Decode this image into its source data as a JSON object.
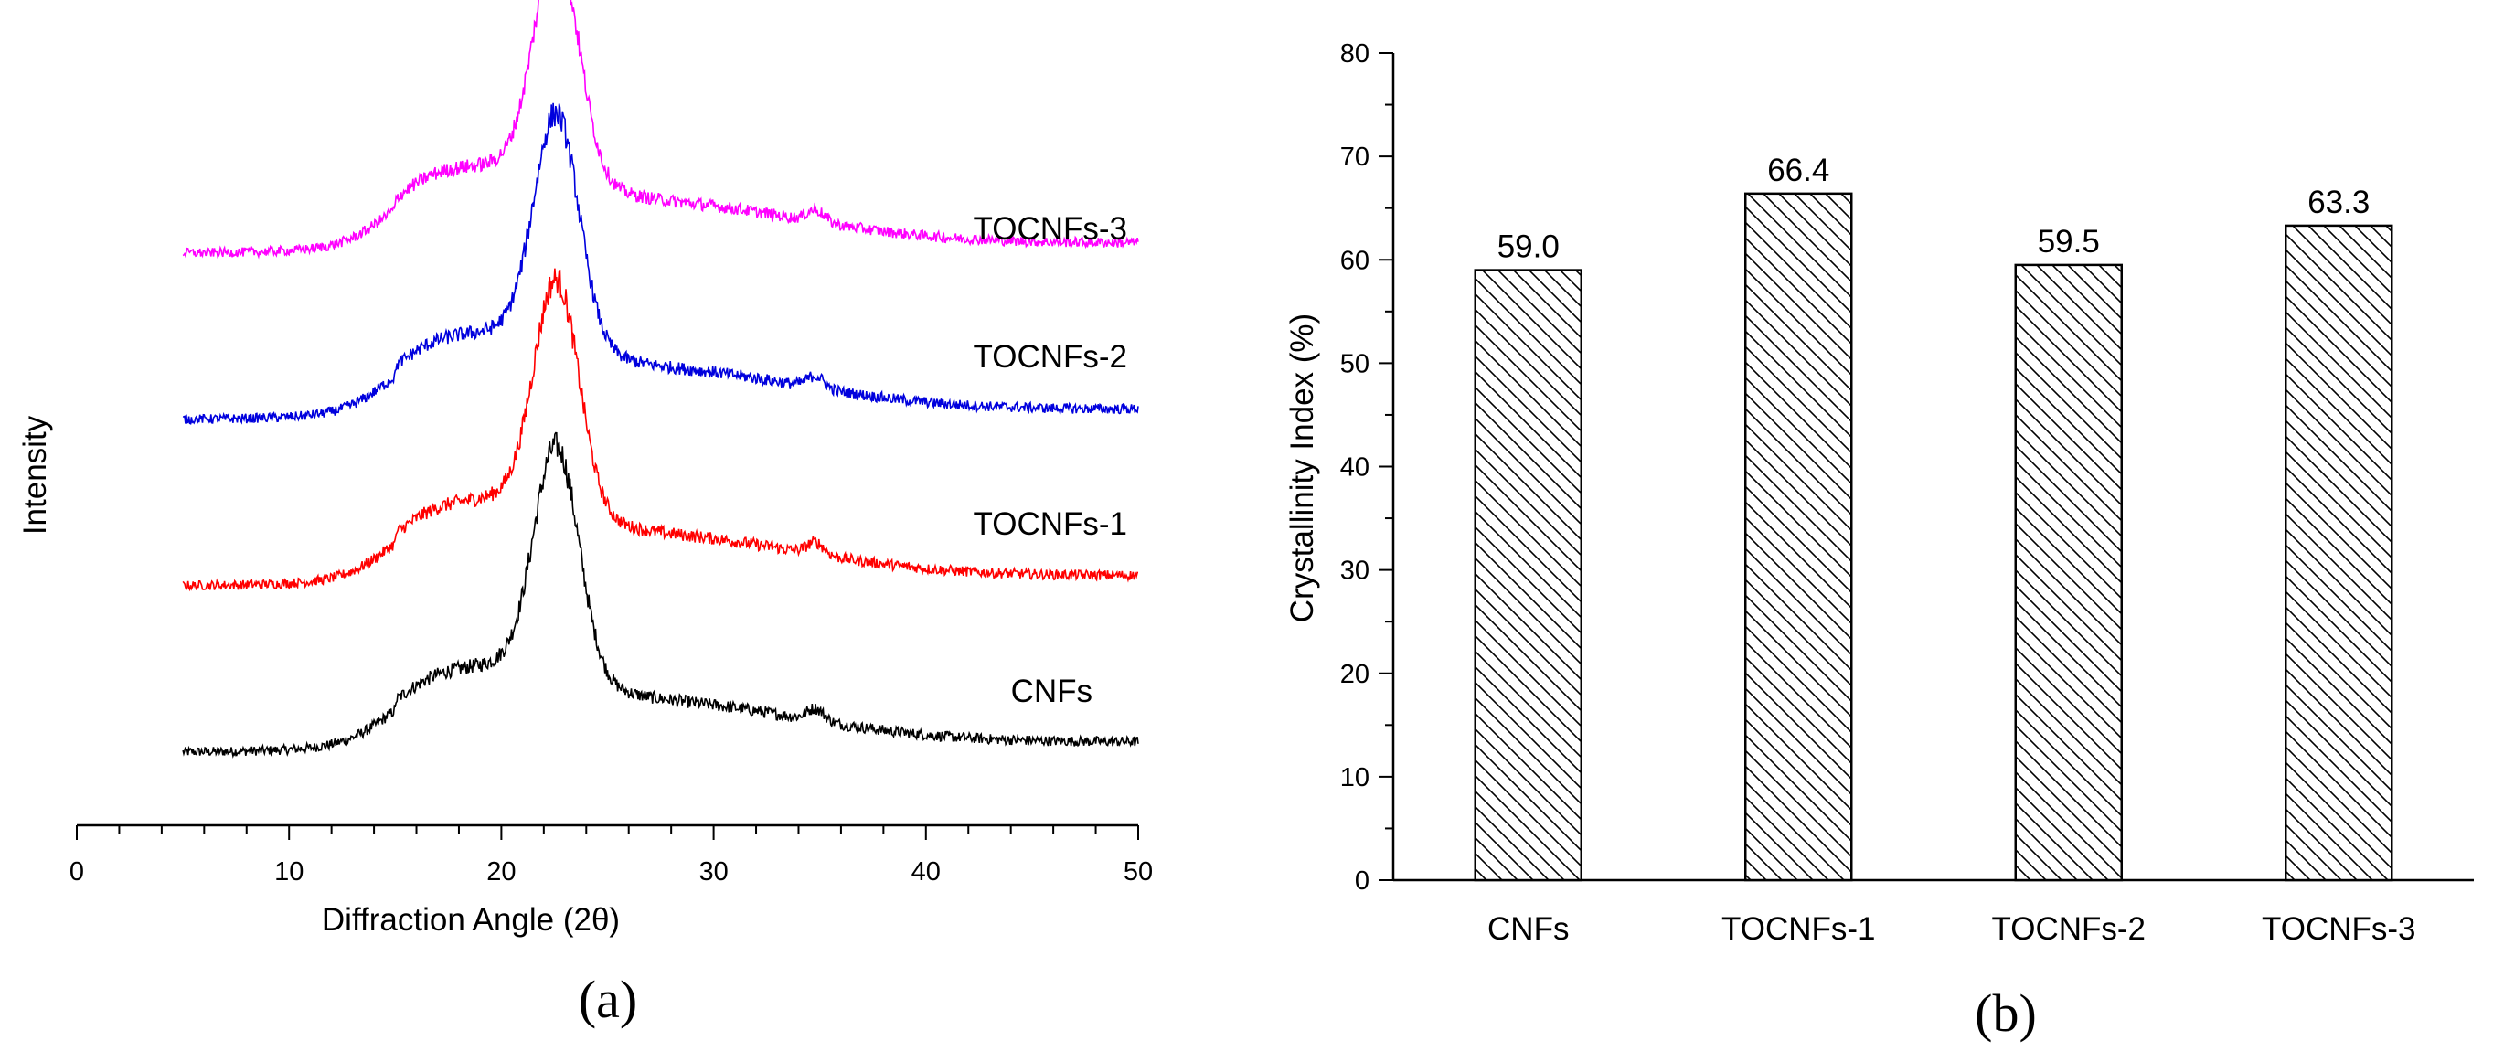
{
  "chart_data": [
    {
      "type": "line",
      "panel_label": "(a)",
      "xlabel": "Diffraction Angle (2θ)",
      "ylabel": "Intensity",
      "xlim": [
        0,
        50
      ],
      "x_ticks": [
        "0",
        "10",
        "20",
        "30",
        "40",
        "50"
      ],
      "x_range": [
        5,
        50
      ],
      "grid": false,
      "series": [
        {
          "name": "CNFs",
          "color": "#000000",
          "offset": 0,
          "peak1": 35,
          "peak2": 100
        },
        {
          "name": "TOCNFs-1",
          "color": "#ff0000",
          "offset": 1,
          "peak1": 36,
          "peak2": 100
        },
        {
          "name": "TOCNFs-2",
          "color": "#0000dd",
          "offset": 2,
          "peak1": 38,
          "peak2": 100
        },
        {
          "name": "TOCNFs-3",
          "color": "#ff00ff",
          "offset": 3,
          "peak1": 40,
          "peak2": 100
        }
      ]
    },
    {
      "type": "bar",
      "panel_label": "(b)",
      "xlabel": "",
      "ylabel": "Crystallinity Index (%)",
      "ylim": [
        0,
        80
      ],
      "y_ticks": [
        "0",
        "10",
        "20",
        "30",
        "40",
        "50",
        "60",
        "70",
        "80"
      ],
      "categories": [
        "CNFs",
        "TOCNFs-1",
        "TOCNFs-2",
        "TOCNFs-3"
      ],
      "values": [
        59.0,
        66.4,
        59.5,
        63.3
      ],
      "value_labels": [
        "59.0",
        "66.4",
        "59.5",
        "63.3"
      ],
      "bar_pattern": "diagonal-hatch",
      "grid": false
    }
  ]
}
